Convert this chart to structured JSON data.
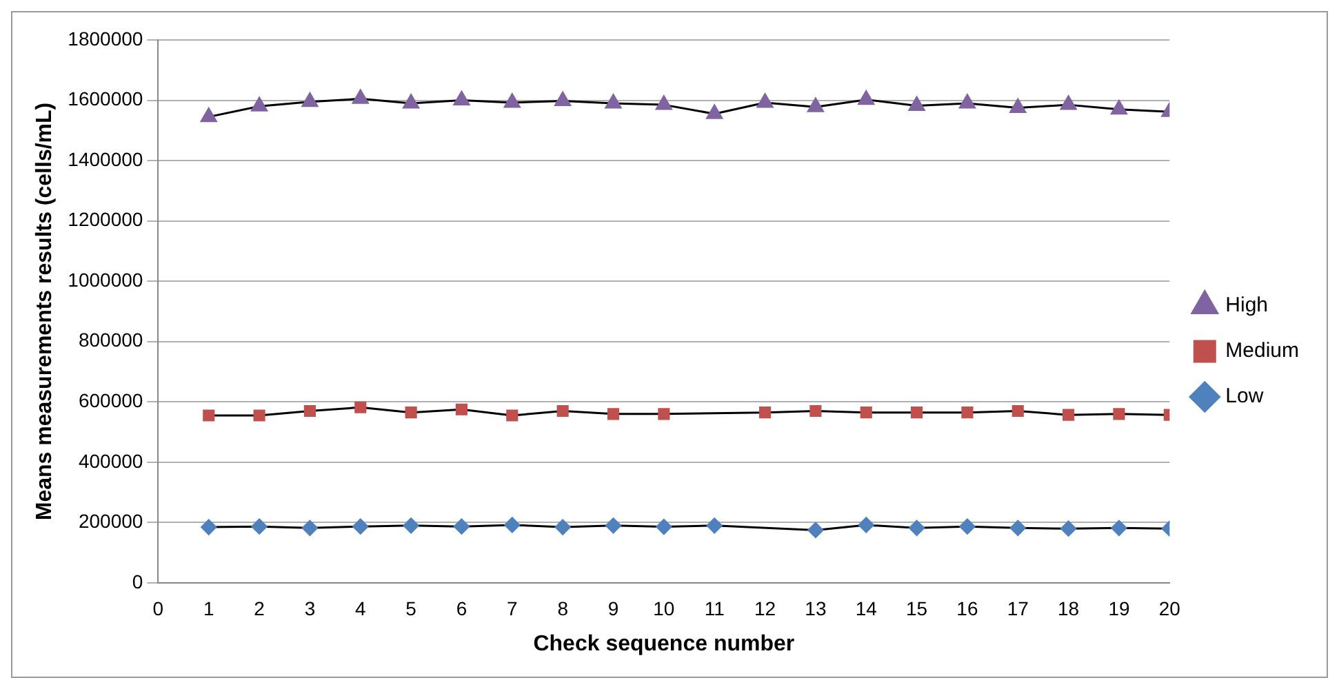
{
  "chart_data": {
    "type": "line",
    "xlabel": "Check sequence number",
    "ylabel": "Means measurements results (cells/mL)",
    "x": [
      1,
      2,
      3,
      4,
      5,
      6,
      7,
      8,
      9,
      10,
      11,
      12,
      13,
      14,
      15,
      16,
      17,
      18,
      19,
      20
    ],
    "xlim": [
      0,
      20
    ],
    "xticks": [
      0,
      1,
      2,
      3,
      4,
      5,
      6,
      7,
      8,
      9,
      10,
      11,
      12,
      13,
      14,
      15,
      16,
      17,
      18,
      19,
      20
    ],
    "ylim": [
      0,
      1800000
    ],
    "yticks": [
      0,
      200000,
      400000,
      600000,
      800000,
      1000000,
      1200000,
      1400000,
      1600000,
      1800000
    ],
    "grid": "y",
    "legend": "right",
    "series": [
      {
        "name": "High",
        "color": "#8064a2",
        "marker": "triangle",
        "values": [
          1545000,
          1580000,
          1595000,
          1605000,
          1590000,
          1600000,
          1592000,
          1598000,
          1590000,
          1585000,
          1555000,
          1592000,
          1578000,
          1602000,
          1582000,
          1590000,
          1575000,
          1585000,
          1570000,
          1562000
        ]
      },
      {
        "name": "Medium",
        "color": "#c0504d",
        "marker": "square",
        "values": [
          555000,
          555000,
          570000,
          582000,
          565000,
          575000,
          555000,
          570000,
          560000,
          560000,
          null,
          565000,
          570000,
          565000,
          565000,
          565000,
          570000,
          557000,
          560000,
          557000
        ]
      },
      {
        "name": "Low",
        "color": "#4f81bd",
        "marker": "diamond",
        "values": [
          185000,
          187000,
          182000,
          187000,
          190000,
          187000,
          192000,
          185000,
          190000,
          186000,
          190000,
          null,
          175000,
          192000,
          182000,
          187000,
          182000,
          180000,
          182000,
          180000
        ]
      }
    ]
  }
}
